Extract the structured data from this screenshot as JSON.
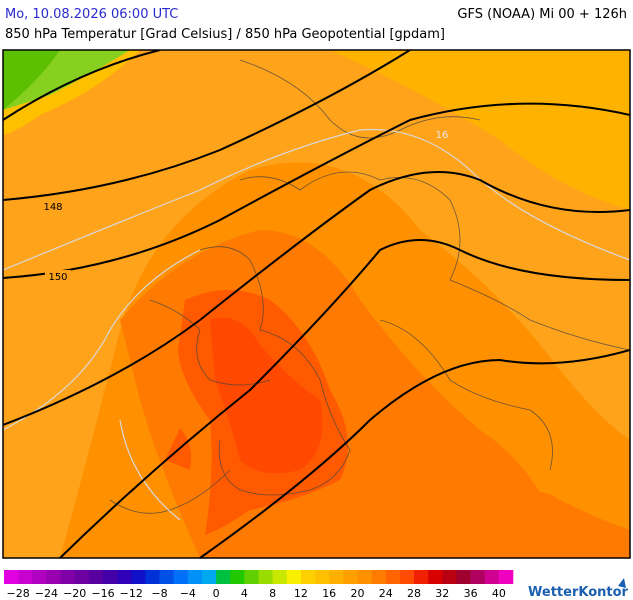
{
  "header": {
    "datetime": "Mo, 10.08.2026 06:00 UTC",
    "model": "GFS (NOAA) Mi 00 + 126h",
    "title": "850 hPa Temperatur [Grad Celsius] / 850 hPa Geopotential [gpdam]"
  },
  "map": {
    "contour_labels": [
      "148",
      "150",
      "16"
    ]
  },
  "legend": {
    "ticks": [
      "−28",
      "−24",
      "−20",
      "−16",
      "−12",
      "−8",
      "−4",
      "0",
      "4",
      "8",
      "12",
      "16",
      "20",
      "24",
      "28",
      "32",
      "36",
      "40"
    ],
    "colors": [
      "#e000e0",
      "#c800d0",
      "#b000c0",
      "#9800b0",
      "#8000a8",
      "#6c00a0",
      "#5800a0",
      "#4400a8",
      "#3000b8",
      "#1010c8",
      "#0030d8",
      "#0050e8",
      "#0070f8",
      "#0090f8",
      "#00a8f0",
      "#00c040",
      "#20c800",
      "#60d000",
      "#98dc00",
      "#c8e800",
      "#f8f000",
      "#ffd000",
      "#ffc000",
      "#ffb000",
      "#ffa000",
      "#ff9000",
      "#ff7c00",
      "#ff6400",
      "#ff4c00",
      "#f02000",
      "#d80000",
      "#b80010",
      "#a00030",
      "#b00060",
      "#d00090",
      "#f000c0"
    ],
    "brand": "WetterKontor"
  }
}
